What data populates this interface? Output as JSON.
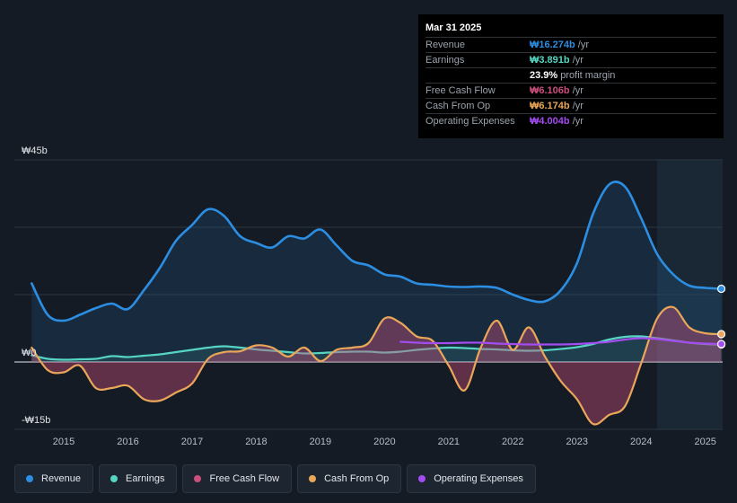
{
  "tooltip": {
    "date": "Mar 31 2025",
    "rows": [
      {
        "label": "Revenue",
        "value": "₩16.274b",
        "unit": " /yr",
        "color": "#2c8ee2"
      },
      {
        "label": "Earnings",
        "value": "₩3.891b",
        "unit": " /yr",
        "color": "#56d6c2"
      },
      {
        "label": "",
        "value": "23.9%",
        "unit": " profit margin",
        "color": "#ffffff"
      },
      {
        "label": "Free Cash Flow",
        "value": "₩6.106b",
        "unit": " /yr",
        "color": "#c94f7c"
      },
      {
        "label": "Cash From Op",
        "value": "₩6.174b",
        "unit": " /yr",
        "color": "#eaa659"
      },
      {
        "label": "Operating Expenses",
        "value": "₩4.004b",
        "unit": " /yr",
        "color": "#a34cf0"
      }
    ]
  },
  "legend": [
    {
      "label": "Revenue",
      "color": "#2c8ee2"
    },
    {
      "label": "Earnings",
      "color": "#56d6c2"
    },
    {
      "label": "Free Cash Flow",
      "color": "#c94f7c"
    },
    {
      "label": "Cash From Op",
      "color": "#eaa659"
    },
    {
      "label": "Operating Expenses",
      "color": "#a34cf0"
    }
  ],
  "chart_data": {
    "type": "area",
    "unit": "₩ billions",
    "ylim": [
      -15,
      45
    ],
    "y_tick_labels": [
      {
        "value": 45,
        "label": "₩45b"
      },
      {
        "value": 0,
        "label": "₩0"
      },
      {
        "value": -15,
        "label": "-₩15b"
      }
    ],
    "xlim": [
      2014.23,
      2025.27
    ],
    "x_tick_labels": [
      "2015",
      "2016",
      "2017",
      "2018",
      "2019",
      "2020",
      "2021",
      "2022",
      "2023",
      "2024",
      "2025"
    ],
    "highlight_region": [
      2024.25,
      2025.27
    ],
    "series": [
      {
        "name": "Revenue",
        "color": "#2c8ee2",
        "fill": true,
        "x": [
          2014.5,
          2014.75,
          2015.0,
          2015.25,
          2015.5,
          2015.75,
          2016.0,
          2016.25,
          2016.5,
          2016.75,
          2017.0,
          2017.25,
          2017.5,
          2017.75,
          2018.0,
          2018.25,
          2018.5,
          2018.75,
          2019.0,
          2019.25,
          2019.5,
          2019.75,
          2020.0,
          2020.25,
          2020.5,
          2020.75,
          2021.0,
          2021.25,
          2021.5,
          2021.75,
          2022.0,
          2022.25,
          2022.5,
          2022.75,
          2023.0,
          2023.25,
          2023.5,
          2023.75,
          2024.0,
          2024.25,
          2024.5,
          2024.75,
          2025.0,
          2025.25
        ],
        "values": [
          17.5,
          10.5,
          9.2,
          10.5,
          12.0,
          13.0,
          11.8,
          16.0,
          21.0,
          27.0,
          30.5,
          34.0,
          32.5,
          28.0,
          26.5,
          25.5,
          28.0,
          27.5,
          29.5,
          26.0,
          22.5,
          21.5,
          19.5,
          19.0,
          17.5,
          17.2,
          16.8,
          16.7,
          16.8,
          16.5,
          15.0,
          13.8,
          13.5,
          16.0,
          22.0,
          33.0,
          39.5,
          39.0,
          32.0,
          24.0,
          19.5,
          17.0,
          16.5,
          16.3
        ]
      },
      {
        "name": "Earnings",
        "color": "#56d6c2",
        "fill": true,
        "x": [
          2014.5,
          2014.75,
          2015.0,
          2015.25,
          2015.5,
          2015.75,
          2016.0,
          2016.25,
          2016.5,
          2016.75,
          2017.0,
          2017.25,
          2017.5,
          2017.75,
          2018.0,
          2018.25,
          2018.5,
          2018.75,
          2019.0,
          2019.25,
          2019.5,
          2019.75,
          2020.0,
          2020.25,
          2020.5,
          2020.75,
          2021.0,
          2021.25,
          2021.5,
          2021.75,
          2022.0,
          2022.25,
          2022.5,
          2022.75,
          2023.0,
          2023.25,
          2023.5,
          2023.75,
          2024.0,
          2024.25,
          2024.5,
          2024.75,
          2025.0,
          2025.25
        ],
        "values": [
          1.5,
          0.7,
          0.5,
          0.6,
          0.7,
          1.3,
          1.1,
          1.4,
          1.7,
          2.2,
          2.7,
          3.2,
          3.5,
          3.2,
          2.8,
          2.5,
          2.2,
          1.9,
          2.0,
          2.2,
          2.3,
          2.3,
          2.1,
          2.3,
          2.7,
          3.0,
          3.2,
          3.1,
          2.9,
          2.8,
          2.6,
          2.5,
          2.6,
          2.9,
          3.3,
          4.0,
          5.0,
          5.6,
          5.7,
          5.3,
          4.8,
          4.3,
          4.0,
          3.9
        ]
      },
      {
        "name": "Free Cash Flow",
        "color": "#c94f7c",
        "fill": true,
        "x": [
          2014.5,
          2014.75,
          2015.0,
          2015.25,
          2015.5,
          2015.75,
          2016.0,
          2016.25,
          2016.5,
          2016.75,
          2017.0,
          2017.25,
          2017.5,
          2017.75,
          2018.0,
          2018.25,
          2018.5,
          2018.75,
          2019.0,
          2019.25,
          2019.5,
          2019.75,
          2020.0,
          2020.25,
          2020.5,
          2020.75,
          2021.0,
          2021.25,
          2021.5,
          2021.75,
          2022.0,
          2022.25,
          2022.5,
          2022.75,
          2023.0,
          2023.25,
          2023.5,
          2023.75,
          2024.0,
          2024.25,
          2024.5,
          2024.75,
          2025.0,
          2025.25
        ],
        "values": [
          3.0,
          -2.0,
          -2.5,
          -1.0,
          -6.0,
          -6.0,
          -5.5,
          -8.5,
          -8.8,
          -7.0,
          -5.0,
          0.5,
          2.0,
          2.2,
          3.5,
          3.0,
          1.0,
          3.0,
          0.0,
          2.5,
          3.0,
          4.0,
          9.5,
          8.5,
          5.5,
          4.5,
          -1.0,
          -6.5,
          3.0,
          9.0,
          2.5,
          7.5,
          1.0,
          -4.5,
          -8.5,
          -14.0,
          -12.0,
          -10.0,
          -0.5,
          9.5,
          12.0,
          7.5,
          6.3,
          6.1
        ]
      },
      {
        "name": "Cash From Op",
        "color": "#eaa659",
        "fill": false,
        "x": [
          2014.5,
          2014.75,
          2015.0,
          2015.25,
          2015.5,
          2015.75,
          2016.0,
          2016.25,
          2016.5,
          2016.75,
          2017.0,
          2017.25,
          2017.5,
          2017.75,
          2018.0,
          2018.25,
          2018.5,
          2018.75,
          2019.0,
          2019.25,
          2019.5,
          2019.75,
          2020.0,
          2020.25,
          2020.5,
          2020.75,
          2021.0,
          2021.25,
          2021.5,
          2021.75,
          2022.0,
          2022.25,
          2022.5,
          2022.75,
          2023.0,
          2023.25,
          2023.5,
          2023.75,
          2024.0,
          2024.25,
          2024.5,
          2024.75,
          2025.0,
          2025.25
        ],
        "values": [
          3.2,
          -1.8,
          -2.3,
          -0.8,
          -5.8,
          -5.8,
          -5.3,
          -8.3,
          -8.6,
          -6.8,
          -4.8,
          0.7,
          2.2,
          2.4,
          3.7,
          3.2,
          1.2,
          3.2,
          0.2,
          2.7,
          3.2,
          4.2,
          9.7,
          8.7,
          5.7,
          4.7,
          -0.8,
          -6.3,
          3.2,
          9.2,
          2.7,
          7.7,
          1.2,
          -4.3,
          -8.3,
          -13.8,
          -11.8,
          -9.8,
          -0.3,
          9.7,
          12.2,
          7.7,
          6.4,
          6.2
        ]
      },
      {
        "name": "Operating Expenses",
        "color": "#a34cf0",
        "fill": false,
        "x": [
          2020.25,
          2020.5,
          2020.75,
          2021.0,
          2021.25,
          2021.5,
          2021.75,
          2022.0,
          2022.25,
          2022.5,
          2022.75,
          2023.0,
          2023.25,
          2023.5,
          2023.75,
          2024.0,
          2024.25,
          2024.5,
          2024.75,
          2025.0,
          2025.25
        ],
        "values": [
          4.5,
          4.3,
          4.2,
          4.2,
          4.3,
          4.3,
          4.1,
          4.0,
          3.9,
          3.9,
          3.9,
          4.0,
          4.2,
          4.5,
          5.0,
          5.3,
          5.1,
          4.7,
          4.3,
          4.1,
          4.0
        ]
      }
    ]
  }
}
